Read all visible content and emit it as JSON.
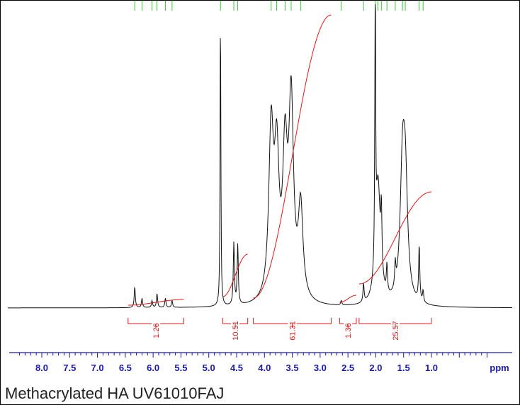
{
  "caption": "Methacrylated HA UV61010FAJ",
  "chart_data": {
    "type": "line",
    "xlabel": "ppm",
    "xlim": [
      8.5,
      -0.2
    ],
    "x_reversed": true,
    "x_ticks": [
      "8.0",
      "7.5",
      "7.0",
      "6.5",
      "6.0",
      "5.5",
      "5.0",
      "4.5",
      "4.0",
      "3.5",
      "3.0",
      "2.5",
      "2.0",
      "1.5",
      "1.0"
    ],
    "x_tick_values": [
      8.0,
      7.5,
      7.0,
      6.5,
      6.0,
      5.5,
      5.0,
      4.5,
      4.0,
      3.5,
      3.0,
      2.5,
      2.0,
      1.5,
      1.0
    ],
    "spectrum_color": "#111111",
    "integral_color": "#e01818",
    "peak_marker_color": "#33cc33",
    "axis_color": "#1a1aa8",
    "integrals": [
      {
        "from": 6.45,
        "to": 5.45,
        "label": "1.26"
      },
      {
        "from": 4.75,
        "to": 4.3,
        "label": "10.51"
      },
      {
        "from": 4.2,
        "to": 2.8,
        "label": "61.31"
      },
      {
        "from": 2.65,
        "to": 2.35,
        "label": "1.36"
      },
      {
        "from": 2.3,
        "to": 1.0,
        "label": "25.57"
      }
    ],
    "peaks": [
      {
        "ppm": 6.33,
        "height": 0.09
      },
      {
        "ppm": 6.2,
        "height": 0.04
      },
      {
        "ppm": 6.02,
        "height": 0.03
      },
      {
        "ppm": 5.93,
        "height": 0.06
      },
      {
        "ppm": 5.78,
        "height": 0.04
      },
      {
        "ppm": 5.66,
        "height": 0.03
      },
      {
        "ppm": 4.79,
        "height": 1.3
      },
      {
        "ppm": 4.55,
        "height": 0.27
      },
      {
        "ppm": 4.48,
        "height": 0.26
      },
      {
        "ppm": 3.88,
        "height": 0.72
      },
      {
        "ppm": 3.78,
        "height": 0.58
      },
      {
        "ppm": 3.63,
        "height": 0.6
      },
      {
        "ppm": 3.52,
        "height": 0.84
      },
      {
        "ppm": 3.35,
        "height": 0.4
      },
      {
        "ppm": 2.62,
        "height": 0.02
      },
      {
        "ppm": 2.22,
        "height": 0.08
      },
      {
        "ppm": 2.01,
        "height": 1.3
      },
      {
        "ppm": 1.96,
        "height": 0.52
      },
      {
        "ppm": 1.9,
        "height": 0.26
      },
      {
        "ppm": 1.8,
        "height": 0.12
      },
      {
        "ppm": 1.65,
        "height": 0.1
      },
      {
        "ppm": 1.52,
        "height": 0.53
      },
      {
        "ppm": 1.47,
        "height": 0.48
      },
      {
        "ppm": 1.22,
        "height": 0.24
      },
      {
        "ppm": 1.15,
        "height": 0.05
      }
    ]
  }
}
